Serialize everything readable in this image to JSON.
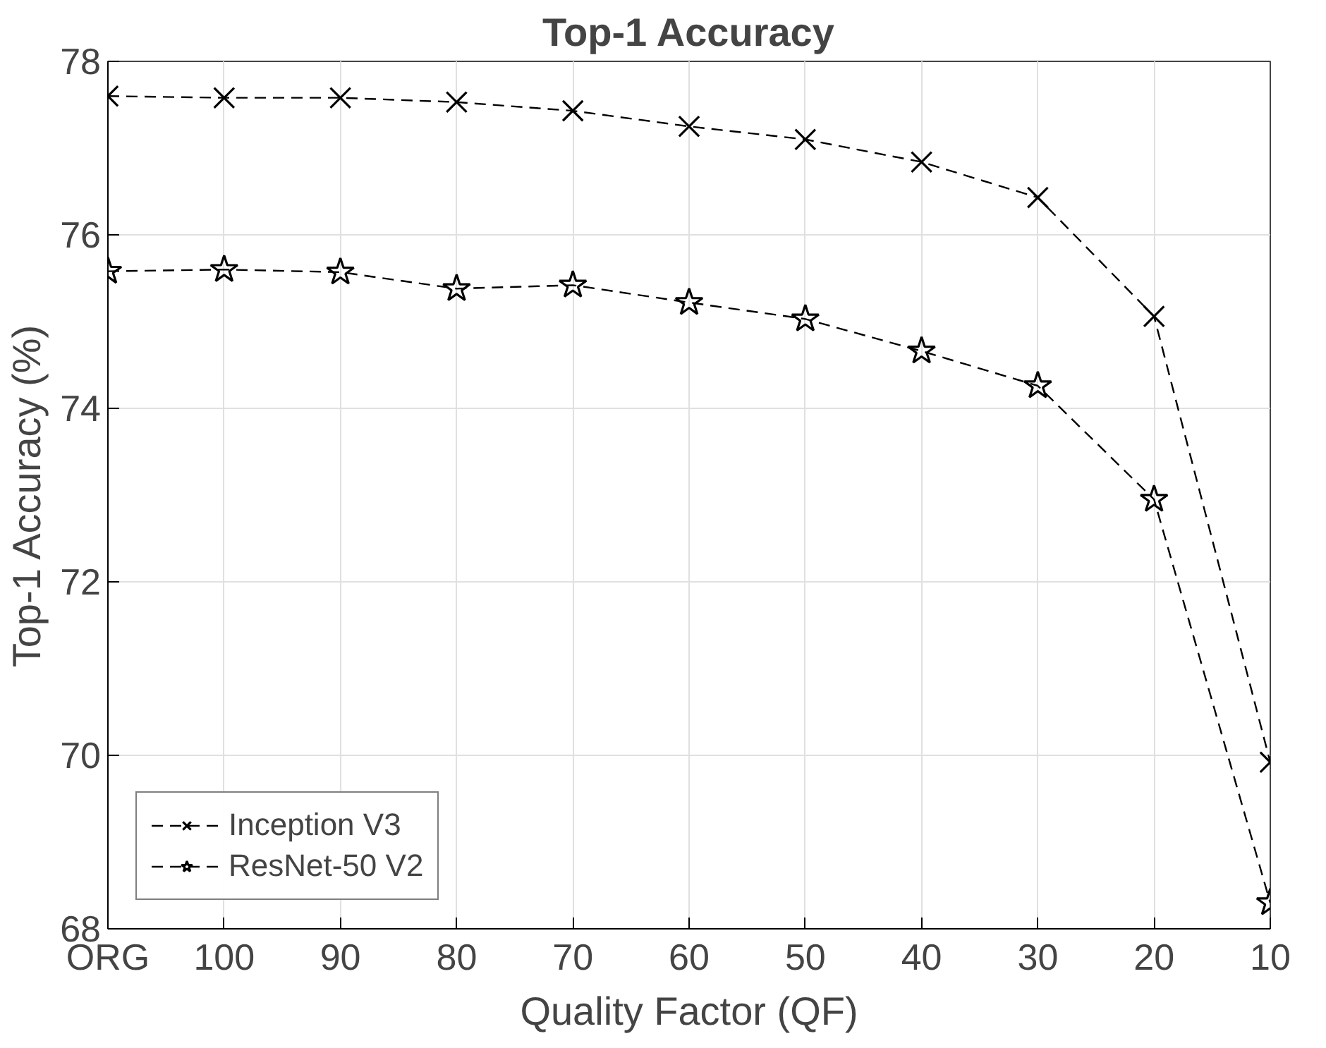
{
  "chart_data": {
    "type": "line",
    "title": "Top-1 Accuracy",
    "xlabel": "Quality Factor (QF)",
    "ylabel": "Top-1 Accuracy (%)",
    "categories": [
      "ORG",
      "100",
      "90",
      "80",
      "70",
      "60",
      "50",
      "40",
      "30",
      "20",
      "10"
    ],
    "ylim": [
      68,
      78
    ],
    "yticks": [
      68,
      70,
      72,
      74,
      76,
      78
    ],
    "grid": true,
    "legend": "bottom left",
    "line_style": "dashed",
    "series": [
      {
        "name": "Inception V3",
        "color": "#000000",
        "marker": "cross",
        "values": [
          77.6,
          77.58,
          77.58,
          77.53,
          77.43,
          77.25,
          77.1,
          76.84,
          76.43,
          75.06,
          69.92
        ]
      },
      {
        "name": "ResNet-50 V2",
        "color": "#000000",
        "marker": "star",
        "values": [
          75.58,
          75.6,
          75.57,
          75.38,
          75.42,
          75.22,
          75.03,
          74.66,
          74.26,
          72.95,
          68.3
        ]
      }
    ]
  }
}
